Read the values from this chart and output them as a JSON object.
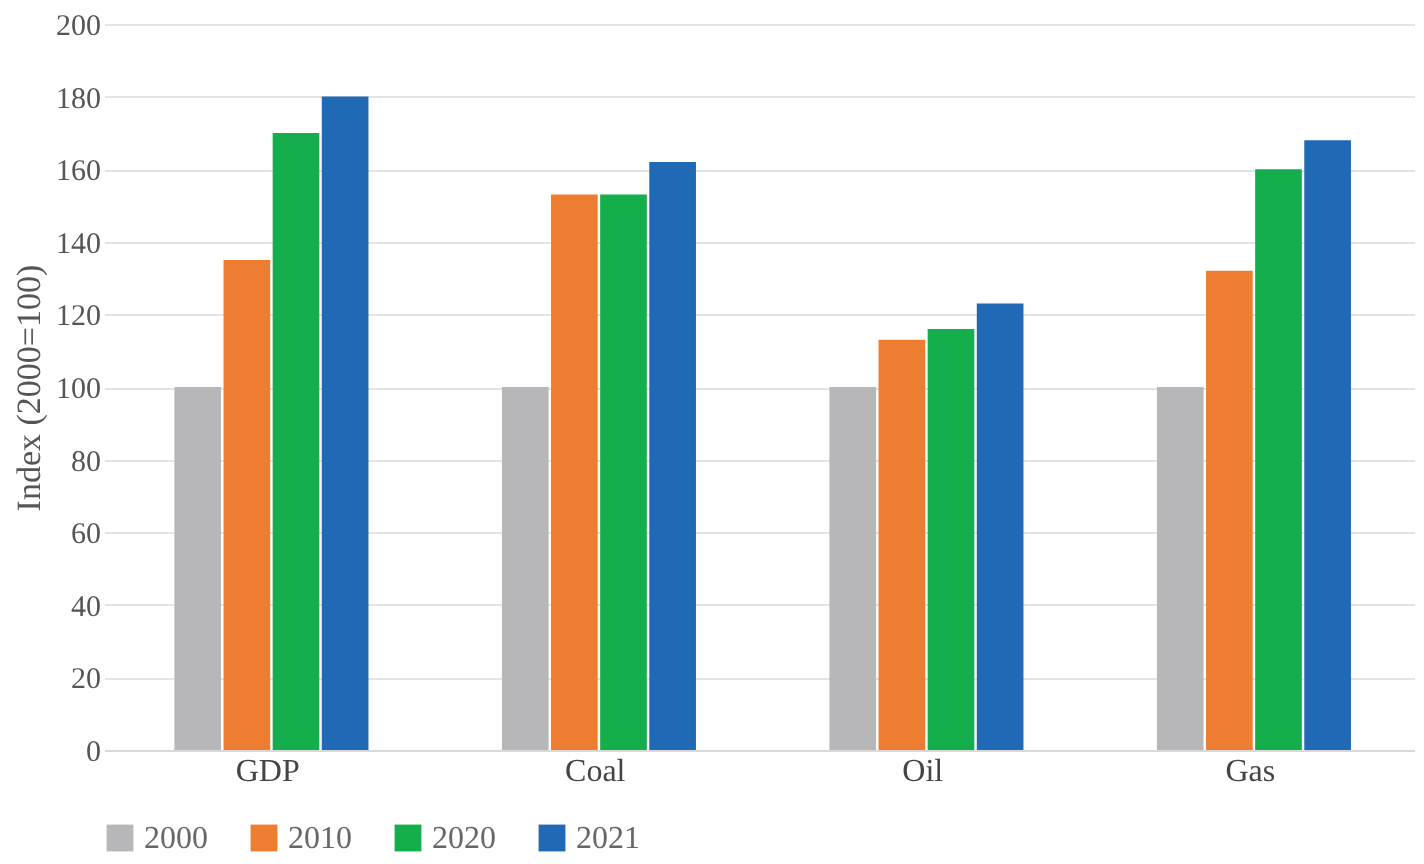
{
  "chart_data": {
    "type": "bar",
    "ylabel": "Index (2000=100)",
    "categories": [
      "GDP",
      "Coal",
      "Oil",
      "Gas"
    ],
    "series": [
      {
        "name": "2000",
        "color": "#b7b7b9",
        "values": [
          100,
          100,
          100,
          100
        ]
      },
      {
        "name": "2010",
        "color": "#ee7d31",
        "values": [
          135,
          153,
          113,
          132
        ]
      },
      {
        "name": "2020",
        "color": "#14ae4d",
        "values": [
          170,
          153,
          116,
          160
        ]
      },
      {
        "name": "2021",
        "color": "#2069b4",
        "values": [
          180,
          162,
          123,
          168
        ]
      }
    ],
    "ylim": [
      0,
      200
    ],
    "yticks": [
      0,
      20,
      40,
      60,
      80,
      100,
      120,
      140,
      160,
      180,
      200
    ],
    "grid": "y",
    "legend": "bottom"
  }
}
